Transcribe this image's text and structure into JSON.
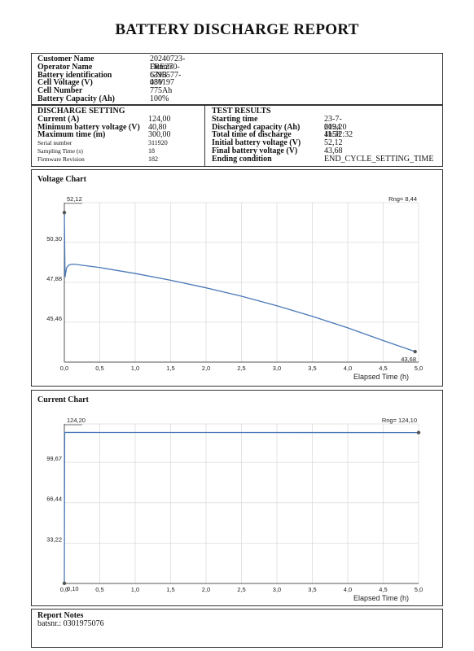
{
  "report": {
    "title": "BATTERY DISCHARGE REPORT"
  },
  "info": [
    {
      "label": "Customer Name",
      "value": "20240723-FRE270-6395577-030197"
    },
    {
      "label": "Operator Name",
      "value": "Dennis"
    },
    {
      "label": "Battery identification",
      "value": "GNB"
    },
    {
      "label": "Cell Voltage (V)",
      "value": "48V"
    },
    {
      "label": "Cell Number",
      "value": "775Ah"
    },
    {
      "label": "Battery Capacity (Ah)",
      "value": "100%"
    }
  ],
  "discharge_setting": {
    "heading": "DISCHARGE SETTING",
    "rows": [
      {
        "label": "Current (A)",
        "value": "124,00",
        "small": false
      },
      {
        "label": "Minimum battery voltage (V)",
        "value": "40,80",
        "small": false
      },
      {
        "label": "Maximum time (m)",
        "value": "300,00",
        "small": false
      },
      {
        "label": "Serial number",
        "value": "311920",
        "small": true
      },
      {
        "label": "Sampling Time (s)",
        "value": "18",
        "small": true
      },
      {
        "label": "Firmware Revision",
        "value": "182",
        "small": true
      }
    ]
  },
  "test_results": {
    "heading": "TEST RESULTS",
    "rows": [
      {
        "label": "Starting time",
        "value": "23-7-2024 11:32:32"
      },
      {
        "label": "Discharged capacity (Ah)",
        "value": "619,20"
      },
      {
        "label": "Total time of discharge",
        "value": "4h58'"
      },
      {
        "label": "Initial battery voltage (V)",
        "value": "52,12"
      },
      {
        "label": "Final battery voltage (V)",
        "value": "43,68"
      },
      {
        "label": "Ending condition",
        "value": "END_CYCLE_SETTING_TIME"
      }
    ]
  },
  "chart_data": [
    {
      "type": "line",
      "title": "Voltage Chart",
      "xlabel": "Elapsed Time (h)",
      "ylabel": "",
      "xlim": [
        0,
        5
      ],
      "ylim": [
        43.04,
        52.72
      ],
      "x_ticks": [
        "0,0",
        "0,5",
        "1,0",
        "1,5",
        "2,0",
        "2,5",
        "3,0",
        "3,5",
        "4,0",
        "4,5",
        "5,0"
      ],
      "y_ticks": [
        {
          "value": 50.3,
          "label": "50,30"
        },
        {
          "value": 47.88,
          "label": "47,88"
        },
        {
          "value": 45.46,
          "label": "45,46"
        }
      ],
      "start_label": "52,12",
      "end_label": "43,68",
      "range_label": "Rng= 8,44",
      "grid": true,
      "line_color": "#4a78b8",
      "series": [
        {
          "x": [
            0,
            0.01,
            0.03,
            0.06,
            0.1,
            0.15,
            0.2,
            0.5,
            1.0,
            1.5,
            2.0,
            2.5,
            3.0,
            3.5,
            4.0,
            4.5,
            4.95
          ],
          "y": [
            52.12,
            48.2,
            48.75,
            48.92,
            48.98,
            48.98,
            48.95,
            48.78,
            48.42,
            48.01,
            47.55,
            47.04,
            46.46,
            45.82,
            45.12,
            44.35,
            43.68
          ]
        }
      ]
    },
    {
      "type": "line",
      "title": "Current Chart",
      "xlabel": "Elapsed Time (h)",
      "ylabel": "",
      "xlim": [
        0,
        5
      ],
      "ylim": [
        0,
        131.2
      ],
      "x_ticks": [
        "0,0",
        "0,5",
        "1,0",
        "1,5",
        "2,0",
        "2,5",
        "3,0",
        "3,5",
        "4,0",
        "4,5",
        "5,0"
      ],
      "y_ticks": [
        {
          "value": 99.67,
          "label": "99,67"
        },
        {
          "value": 66.44,
          "label": "66,44"
        },
        {
          "value": 33.22,
          "label": "33,22"
        }
      ],
      "start_label": "124,20",
      "end_label": "0,10",
      "range_label": "Rng= 124,10",
      "grid": true,
      "line_color": "#4a78b8",
      "series": [
        {
          "x": [
            0,
            0.005,
            0.02,
            5.0
          ],
          "y": [
            0.1,
            124.1,
            124.2,
            124.1
          ]
        }
      ]
    }
  ],
  "notes": {
    "title": "Report Notes",
    "text": "batsnr.: 0301975076"
  }
}
